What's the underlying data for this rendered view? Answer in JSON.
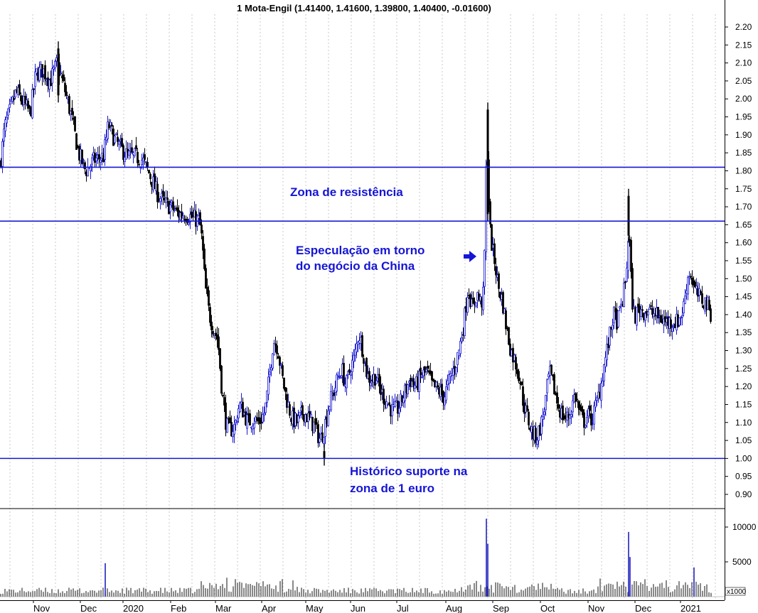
{
  "chart_data": {
    "type": "candlestick",
    "title": "1 Mota-Engil (1.41400, 1.41600, 1.39800, 1.40400, -0.01600)",
    "price_axis": {
      "ylim": [
        0.86,
        2.24
      ],
      "ticks": [
        "0.90",
        "0.95",
        "1.00",
        "1.05",
        "1.10",
        "1.15",
        "1.20",
        "1.25",
        "1.30",
        "1.35",
        "1.40",
        "1.45",
        "1.50",
        "1.55",
        "1.60",
        "1.65",
        "1.70",
        "1.75",
        "1.80",
        "1.85",
        "1.90",
        "1.95",
        "2.00",
        "2.05",
        "2.10",
        "2.15",
        "2.20"
      ]
    },
    "volume_axis": {
      "ylim": [
        0,
        12000
      ],
      "ticks": [
        "5000",
        "10000"
      ],
      "unit_label": "x1000"
    },
    "x_tick_labels": [
      "Nov",
      "Dec",
      "2020",
      "Feb",
      "Mar",
      "Apr",
      "May",
      "Jun",
      "Jul",
      "Aug",
      "Sep",
      "Oct",
      "Nov",
      "Dec",
      "2021"
    ],
    "grid": true,
    "horizontal_levels": [
      {
        "value": 1.81
      },
      {
        "value": 1.66
      },
      {
        "value": 1.0
      }
    ],
    "annotations": [
      {
        "text_lines": [
          "Zona de resistência"
        ]
      },
      {
        "text_lines": [
          "Especulação em torno",
          "do negócio da China"
        ]
      },
      {
        "text_lines": [
          "Histórico suporte na",
          "zona de 1 euro"
        ]
      }
    ],
    "price_path": [
      [
        0,
        1.82
      ],
      [
        6,
        1.92
      ],
      [
        14,
        1.97
      ],
      [
        22,
        2.02
      ],
      [
        32,
        1.99
      ],
      [
        42,
        1.96
      ],
      [
        50,
        2.07
      ],
      [
        60,
        2.08
      ],
      [
        70,
        2.05
      ],
      [
        80,
        2.1
      ],
      [
        90,
        2.03
      ],
      [
        100,
        1.95
      ],
      [
        110,
        1.85
      ],
      [
        120,
        1.8
      ],
      [
        132,
        1.83
      ],
      [
        145,
        1.84
      ],
      [
        152,
        1.93
      ],
      [
        160,
        1.89
      ],
      [
        170,
        1.86
      ],
      [
        180,
        1.84
      ],
      [
        190,
        1.84
      ],
      [
        200,
        1.83
      ],
      [
        210,
        1.79
      ],
      [
        220,
        1.74
      ],
      [
        230,
        1.71
      ],
      [
        240,
        1.7
      ],
      [
        250,
        1.68
      ],
      [
        260,
        1.68
      ],
      [
        270,
        1.67
      ],
      [
        280,
        1.66
      ],
      [
        284,
        1.6
      ],
      [
        288,
        1.48
      ],
      [
        294,
        1.4
      ],
      [
        300,
        1.36
      ],
      [
        306,
        1.33
      ],
      [
        312,
        1.18
      ],
      [
        318,
        1.09
      ],
      [
        324,
        1.08
      ],
      [
        330,
        1.09
      ],
      [
        336,
        1.15
      ],
      [
        342,
        1.13
      ],
      [
        348,
        1.1
      ],
      [
        356,
        1.11
      ],
      [
        364,
        1.1
      ],
      [
        372,
        1.13
      ],
      [
        378,
        1.22
      ],
      [
        384,
        1.33
      ],
      [
        390,
        1.31
      ],
      [
        396,
        1.23
      ],
      [
        402,
        1.17
      ],
      [
        410,
        1.11
      ],
      [
        418,
        1.1
      ],
      [
        426,
        1.13
      ],
      [
        434,
        1.11
      ],
      [
        442,
        1.09
      ],
      [
        450,
        1.05
      ],
      [
        456,
        1.09
      ],
      [
        462,
        1.15
      ],
      [
        468,
        1.18
      ],
      [
        474,
        1.22
      ],
      [
        480,
        1.25
      ],
      [
        486,
        1.2
      ],
      [
        492,
        1.25
      ],
      [
        498,
        1.28
      ],
      [
        504,
        1.35
      ],
      [
        510,
        1.3
      ],
      [
        516,
        1.23
      ],
      [
        522,
        1.22
      ],
      [
        528,
        1.23
      ],
      [
        534,
        1.19
      ],
      [
        540,
        1.17
      ],
      [
        546,
        1.15
      ],
      [
        552,
        1.13
      ],
      [
        560,
        1.14
      ],
      [
        568,
        1.18
      ],
      [
        576,
        1.22
      ],
      [
        584,
        1.2
      ],
      [
        592,
        1.23
      ],
      [
        600,
        1.24
      ],
      [
        608,
        1.2
      ],
      [
        616,
        1.19
      ],
      [
        624,
        1.17
      ],
      [
        632,
        1.22
      ],
      [
        640,
        1.26
      ],
      [
        646,
        1.31
      ],
      [
        652,
        1.38
      ],
      [
        658,
        1.48
      ],
      [
        664,
        1.41
      ],
      [
        670,
        1.46
      ],
      [
        676,
        1.43
      ],
      [
        680,
        1.46
      ],
      [
        684,
        1.91
      ],
      [
        688,
        1.65
      ],
      [
        692,
        1.58
      ],
      [
        696,
        1.54
      ],
      [
        700,
        1.48
      ],
      [
        706,
        1.44
      ],
      [
        712,
        1.36
      ],
      [
        718,
        1.3
      ],
      [
        724,
        1.27
      ],
      [
        730,
        1.23
      ],
      [
        736,
        1.15
      ],
      [
        742,
        1.11
      ],
      [
        748,
        1.07
      ],
      [
        754,
        1.06
      ],
      [
        760,
        1.09
      ],
      [
        766,
        1.15
      ],
      [
        772,
        1.24
      ],
      [
        778,
        1.2
      ],
      [
        784,
        1.15
      ],
      [
        790,
        1.12
      ],
      [
        796,
        1.11
      ],
      [
        802,
        1.13
      ],
      [
        808,
        1.18
      ],
      [
        814,
        1.13
      ],
      [
        820,
        1.1
      ],
      [
        826,
        1.12
      ],
      [
        832,
        1.11
      ],
      [
        838,
        1.15
      ],
      [
        844,
        1.2
      ],
      [
        850,
        1.27
      ],
      [
        856,
        1.33
      ],
      [
        862,
        1.4
      ],
      [
        868,
        1.38
      ],
      [
        874,
        1.43
      ],
      [
        880,
        1.5
      ],
      [
        884,
        1.65
      ],
      [
        888,
        1.45
      ],
      [
        892,
        1.39
      ],
      [
        898,
        1.42
      ],
      [
        904,
        1.41
      ],
      [
        912,
        1.41
      ],
      [
        920,
        1.4
      ],
      [
        928,
        1.39
      ],
      [
        936,
        1.38
      ],
      [
        944,
        1.38
      ],
      [
        952,
        1.38
      ],
      [
        960,
        1.41
      ],
      [
        966,
        1.5
      ],
      [
        970,
        1.52
      ],
      [
        976,
        1.47
      ],
      [
        982,
        1.45
      ],
      [
        988,
        1.44
      ],
      [
        994,
        1.43
      ],
      [
        1000,
        1.4
      ]
    ],
    "price_spikes": [
      [
        82,
        1.99,
        2.16
      ],
      [
        686,
        1.66,
        1.99
      ],
      [
        884,
        1.6,
        1.75
      ],
      [
        456,
        0.98,
        1.04
      ]
    ],
    "volume_spikes": [
      [
        148,
        4800
      ],
      [
        684,
        11200
      ],
      [
        686,
        7600
      ],
      [
        884,
        9300
      ],
      [
        886,
        5700
      ],
      [
        976,
        4200
      ]
    ]
  }
}
